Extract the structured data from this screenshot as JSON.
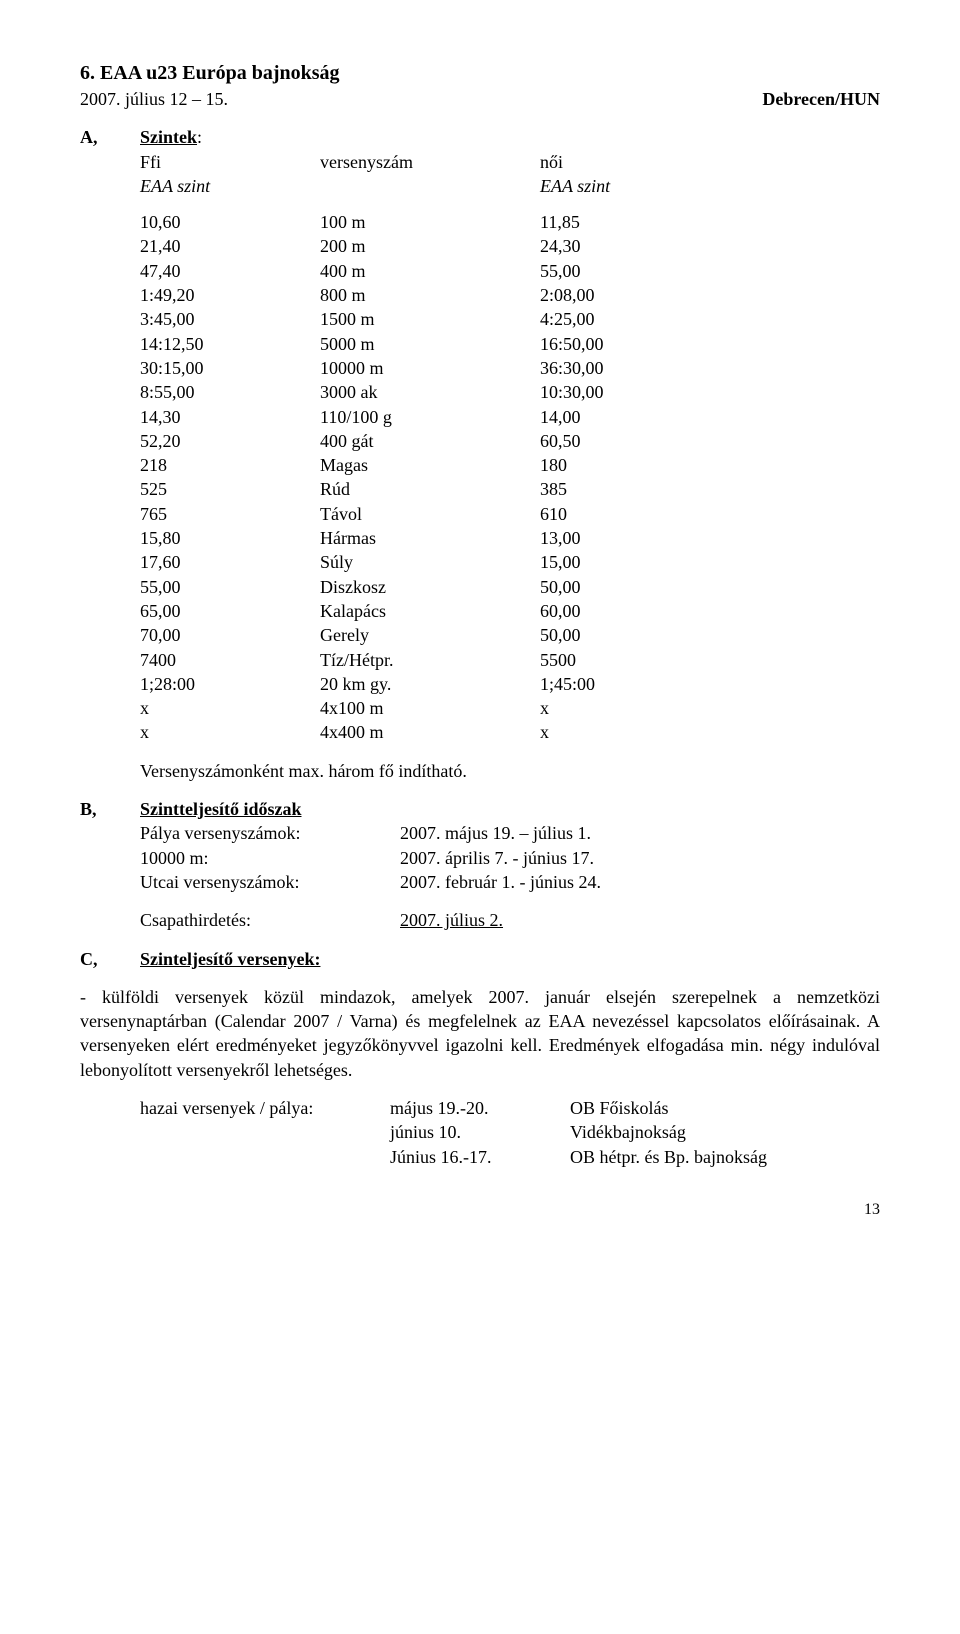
{
  "title": "6. EAA u23 Európa bajnokság",
  "date_line": "2007. július 12 – 15.",
  "location": "Debrecen/HUN",
  "sectionA": {
    "letter": "A,",
    "name": "Szintek",
    "colon": ":",
    "header": {
      "c1": "Ffi",
      "c2": "versenyszám",
      "c3": "női"
    },
    "subheader": {
      "c1": "EAA szint",
      "c3": "EAA szint"
    },
    "rows": [
      [
        "10,60",
        "100 m",
        "11,85"
      ],
      [
        "21,40",
        "200 m",
        "24,30"
      ],
      [
        "47,40",
        "400 m",
        "55,00"
      ],
      [
        "1:49,20",
        "800 m",
        "2:08,00"
      ],
      [
        "3:45,00",
        "1500 m",
        "4:25,00"
      ],
      [
        "14:12,50",
        "5000 m",
        "16:50,00"
      ],
      [
        "30:15,00",
        "10000 m",
        "36:30,00"
      ],
      [
        "8:55,00",
        "3000 ak",
        "10:30,00"
      ],
      [
        "14,30",
        "110/100 g",
        "14,00"
      ],
      [
        "52,20",
        "400 gát",
        "60,50"
      ],
      [
        "218",
        "Magas",
        "180"
      ],
      [
        "525",
        "Rúd",
        "385"
      ],
      [
        "765",
        "Távol",
        "610"
      ],
      [
        "15,80",
        "Hármas",
        "13,00"
      ],
      [
        "17,60",
        "Súly",
        "15,00"
      ],
      [
        "55,00",
        "Diszkosz",
        "50,00"
      ],
      [
        "65,00",
        "Kalapács",
        "60,00"
      ],
      [
        "70,00",
        "Gerely",
        "50,00"
      ],
      [
        "7400",
        "Tíz/Hétpr.",
        "5500"
      ],
      [
        "1;28:00",
        "20 km gy.",
        "1;45:00"
      ],
      [
        "x",
        "4x100 m",
        "x"
      ],
      [
        "x",
        "4x400 m",
        "x"
      ]
    ],
    "note": "Versenyszámonként max. három fő indítható."
  },
  "sectionB": {
    "letter": "B,",
    "name": "Szintteljesítő időszak",
    "rows": [
      [
        "Pálya versenyszámok:",
        "2007. május 19. – július 1."
      ],
      [
        "10000 m:",
        "2007. április 7.  - június 17."
      ],
      [
        "Utcai versenyszámok:",
        "2007. február 1. - június 24."
      ]
    ],
    "csapat_k": "Csapathirdetés:",
    "csapat_v": "2007. július 2."
  },
  "sectionC": {
    "letter": "C,",
    "name": "Szinteljesítő versenyek:"
  },
  "paragraph": "-        külföldi versenyek közül mindazok, amelyek 2007. január elsején szerepelnek a nemzetközi versenynaptárban (Calendar 2007 / Varna) és megfelelnek az EAA nevezéssel kapcsolatos előírásainak. A versenyeken elért eredményeket jegyzőkönyvvel igazolni kell. Eredmények elfogadása min. négy indulóval lebonyolított versenyekről lehetséges.",
  "hazai": {
    "rows": [
      [
        "hazai versenyek / pálya:",
        "május 19.-20.",
        "OB Főiskolás"
      ],
      [
        "",
        "június 10.",
        "Vidékbajnokság"
      ],
      [
        "",
        "Június 16.-17.",
        "OB hétpr. és Bp. bajnokság"
      ]
    ]
  },
  "page_number": "13"
}
